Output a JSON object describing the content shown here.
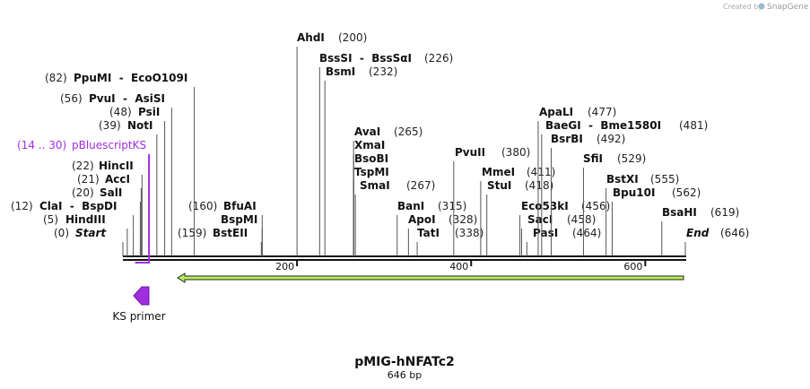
{
  "credit": {
    "prefix": "Created by",
    "brand": "SnapGene"
  },
  "title": "pMIG-hNFATc2",
  "subtitle": "646 bp",
  "scale": {
    "length": 646,
    "ticks": [
      200,
      400,
      600
    ]
  },
  "sites": [
    {
      "name": "Start",
      "pos": 0,
      "pos_label": "(0)"
    },
    {
      "name": "HindIII",
      "pos": 5,
      "pos_label": "(5)"
    },
    {
      "name": "ClaI  -  BspDI",
      "pos": 12,
      "pos_label": "(12)"
    },
    {
      "name": "SalI",
      "pos": 20,
      "pos_label": "(20)"
    },
    {
      "name": "AccI",
      "pos": 21,
      "pos_label": "(21)"
    },
    {
      "name": "HincII",
      "pos": 22,
      "pos_label": "(22)"
    },
    {
      "name": "NotI",
      "pos": 39,
      "pos_label": "(39)"
    },
    {
      "name": "PsiI",
      "pos": 48,
      "pos_label": "(48)"
    },
    {
      "name": "PvuI  -  AsiSI",
      "pos": 56,
      "pos_label": "(56)"
    },
    {
      "name": "PpuMI  -  EcoO109I",
      "pos": 82,
      "pos_label": "(82)"
    },
    {
      "name": "BfuAI",
      "pos": 160,
      "pos_label": "(160)"
    },
    {
      "name": "BspMI",
      "pos": 160
    },
    {
      "name": "BstEII",
      "pos": 159,
      "pos_label": "(159)"
    },
    {
      "name": "AhdI",
      "pos": 200,
      "pos_label": "(200)"
    },
    {
      "name": "BssSI  -  BssSαI",
      "pos": 226,
      "pos_label": "(226)"
    },
    {
      "name": "BsmI",
      "pos": 232,
      "pos_label": "(232)"
    },
    {
      "name": "AvaI",
      "pos": 265,
      "pos_label": "(265)"
    },
    {
      "name": "XmaI",
      "pos": 265
    },
    {
      "name": "BsoBI",
      "pos": 265
    },
    {
      "name": "TspMI",
      "pos": 265
    },
    {
      "name": "SmaI",
      "pos": 267,
      "pos_label": "(267)"
    },
    {
      "name": "BanI",
      "pos": 315,
      "pos_label": "(315)"
    },
    {
      "name": "ApoI",
      "pos": 328,
      "pos_label": "(328)"
    },
    {
      "name": "TatI",
      "pos": 338,
      "pos_label": "(338)"
    },
    {
      "name": "PvuII",
      "pos": 380,
      "pos_label": "(380)"
    },
    {
      "name": "MmeI",
      "pos": 411,
      "pos_label": "(411)"
    },
    {
      "name": "StuI",
      "pos": 418,
      "pos_label": "(418)"
    },
    {
      "name": "Eco53kI",
      "pos": 456,
      "pos_label": "(456)"
    },
    {
      "name": "SacI",
      "pos": 458,
      "pos_label": "(458)"
    },
    {
      "name": "PasI",
      "pos": 464,
      "pos_label": "(464)"
    },
    {
      "name": "ApaLI",
      "pos": 477,
      "pos_label": "(477)"
    },
    {
      "name": "BaeGI  -  Bme1580I",
      "pos": 481,
      "pos_label": "(481)"
    },
    {
      "name": "BsrBI",
      "pos": 492,
      "pos_label": "(492)"
    },
    {
      "name": "SfiI",
      "pos": 529,
      "pos_label": "(529)"
    },
    {
      "name": "BstXI",
      "pos": 555,
      "pos_label": "(555)"
    },
    {
      "name": "Bpu10I",
      "pos": 562,
      "pos_label": "(562)"
    },
    {
      "name": "BsaHI",
      "pos": 619,
      "pos_label": "(619)"
    },
    {
      "name": "End",
      "pos": 646,
      "pos_label": "(646)"
    }
  ],
  "primer_site": {
    "range_label": "(14 .. 30)",
    "name": "pBluescriptKS",
    "start": 14,
    "end": 30
  },
  "primer": {
    "label": "KS primer"
  }
}
